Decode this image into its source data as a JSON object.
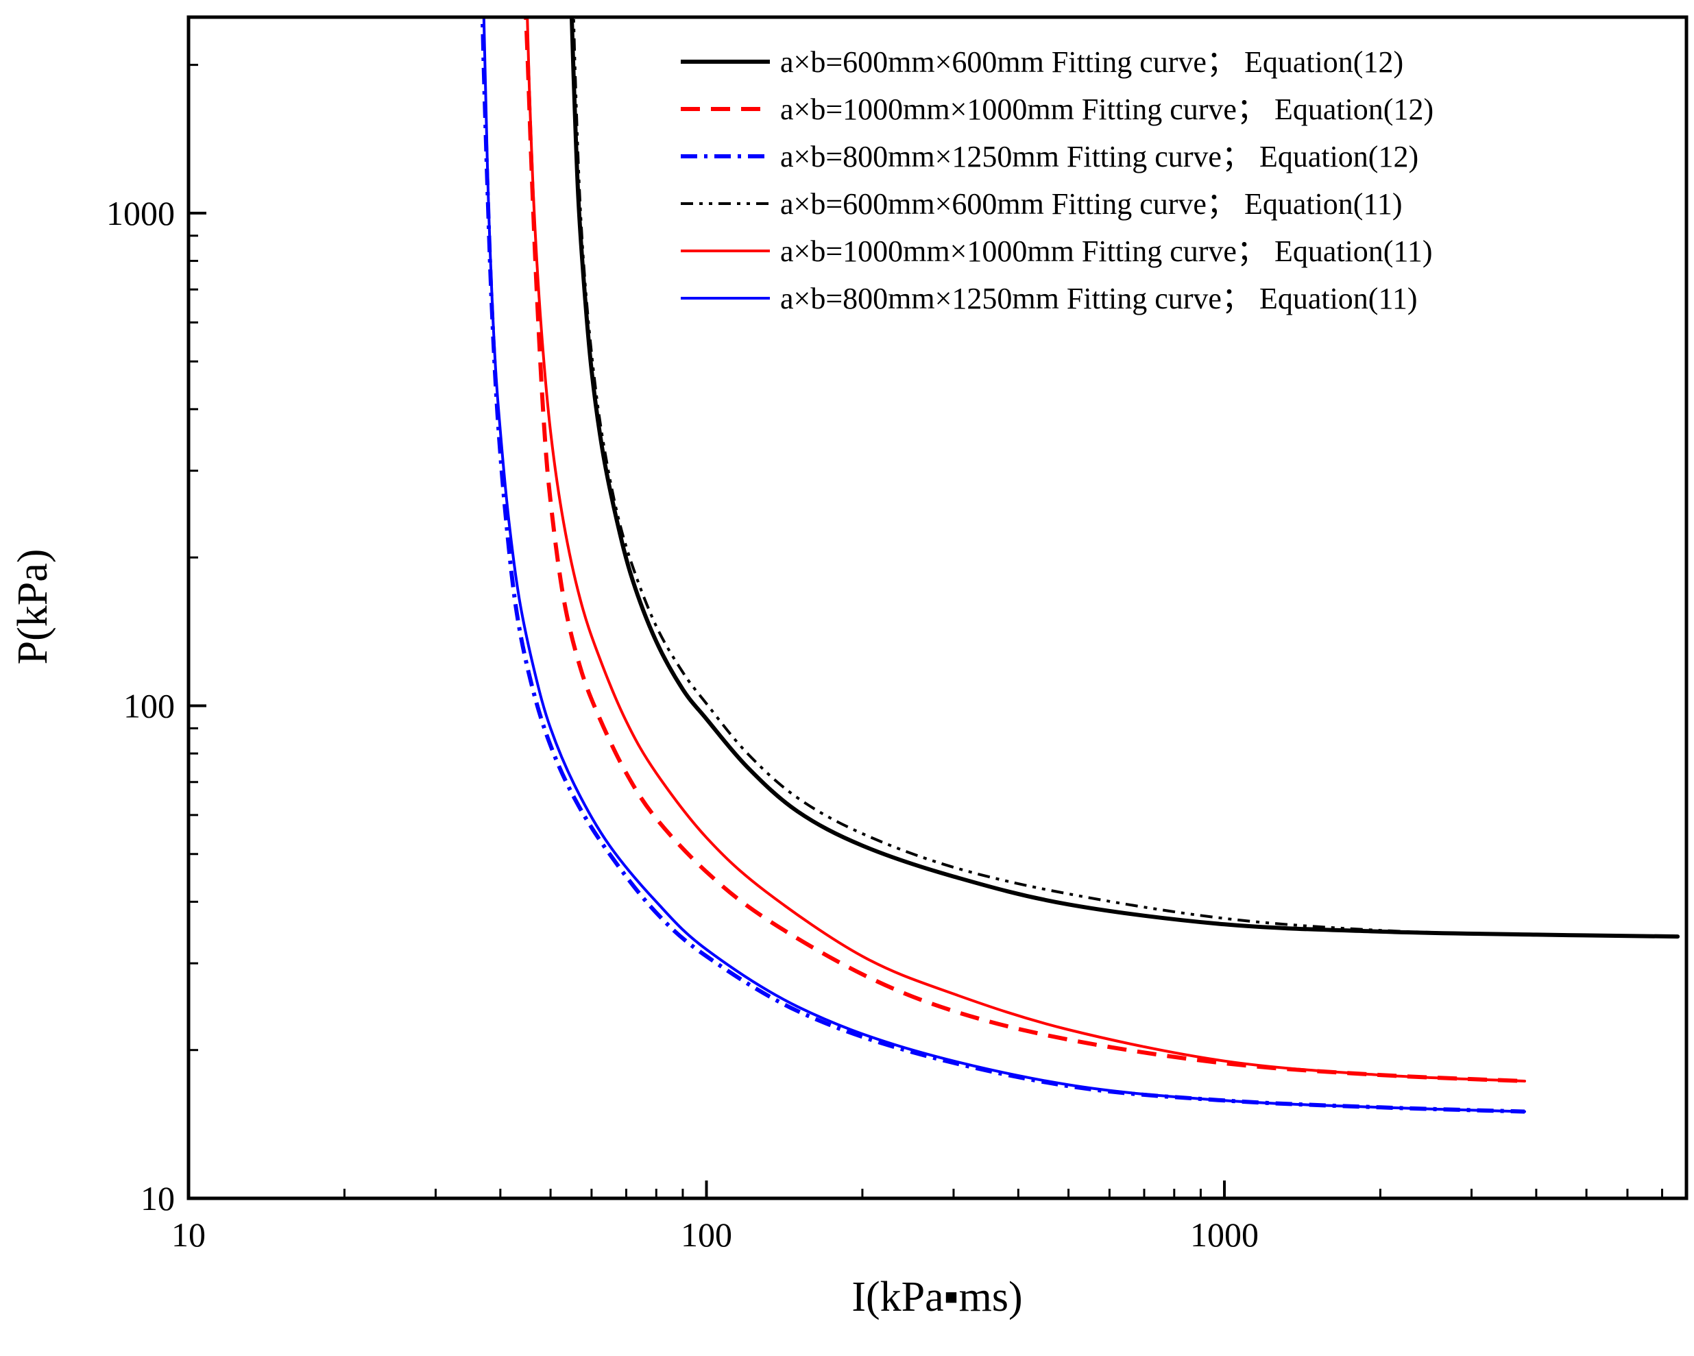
{
  "chart_data": {
    "type": "line",
    "title": "",
    "xlabel": "I(kPa▪ms)",
    "ylabel": "P(kPa)",
    "xscale": "log",
    "yscale": "log",
    "xlim": [
      10,
      7800
    ],
    "ylim": [
      10,
      2500
    ],
    "x_ticks": [
      {
        "value": 10,
        "label": "10"
      },
      {
        "value": 100,
        "label": "100"
      },
      {
        "value": 1000,
        "label": "1000"
      }
    ],
    "y_ticks": [
      {
        "value": 10,
        "label": "10"
      },
      {
        "value": 100,
        "label": "100"
      },
      {
        "value": 1000,
        "label": "1000"
      }
    ],
    "legend_position": "top-right",
    "series": [
      {
        "name": "a×b=600mm×600mm Fitting curve； Equation(12)",
        "color": "#000000",
        "style": "solid",
        "width": 6,
        "x": [
          54.8,
          55.4,
          56.5,
          58.0,
          60.0,
          63.0,
          67.0,
          72.0,
          80.0,
          90.0,
          100.0,
          120.0,
          150.0,
          200.0,
          300.0,
          500.0,
          1000.0,
          2000.0,
          4000.0,
          7500.0
        ],
        "y": [
          2700,
          1900,
          1100,
          720,
          480,
          330,
          240,
          180,
          135,
          108,
          94,
          75,
          61,
          52,
          45,
          39.5,
          36,
          34.8,
          34.3,
          34.0
        ]
      },
      {
        "name": "a×b=1000mm×1000mm Fitting curve； Equation(12)",
        "color": "#ff0000",
        "style": "dashed",
        "width": 6,
        "x": [
          44.7,
          45.2,
          46.0,
          47.0,
          48.5,
          50.0,
          53.0,
          57.0,
          62.0,
          70.0,
          80.0,
          100.0,
          130.0,
          200.0,
          300.0,
          500.0,
          1000.0,
          2000.0,
          3800.0
        ],
        "y": [
          2700,
          2000,
          1200,
          700,
          380,
          260,
          165,
          120,
          95,
          73,
          59,
          46,
          37,
          28.5,
          24,
          21,
          18.8,
          17.8,
          17.3
        ]
      },
      {
        "name": "a×b=800mm×1250mm Fitting curve； Equation(12)",
        "color": "#0000ff",
        "style": "dashdot",
        "width": 6,
        "x": [
          36.9,
          37.2,
          37.8,
          38.5,
          39.5,
          41.0,
          43.0,
          46.0,
          50.0,
          56.0,
          65.0,
          80.0,
          100.0,
          150.0,
          250.0,
          500.0,
          1000.0,
          2000.0,
          3800.0
        ],
        "y": [
          2700,
          1900,
          1100,
          650,
          390,
          240,
          155,
          110,
          83,
          64,
          50,
          38,
          31,
          24,
          19.8,
          16.9,
          15.8,
          15.3,
          15.0
        ]
      },
      {
        "name": "a×b=600mm×600mm Fitting curve； Equation(11)",
        "color": "#000000",
        "style": "dashdotdot",
        "width": 4,
        "x": [
          55.3,
          55.9,
          57.0,
          58.5,
          60.5,
          63.0,
          67.0,
          72.0,
          80.0,
          90.0,
          100.0,
          120.0,
          150.0,
          200.0,
          300.0,
          500.0,
          1000.0,
          2000.0,
          4000.0,
          7500.0
        ],
        "y": [
          2700,
          1800,
          1050,
          690,
          480,
          350,
          250,
          192,
          145,
          117,
          101,
          80,
          65,
          55,
          47,
          41.5,
          37,
          35,
          34.3,
          34.0
        ]
      },
      {
        "name": "a×b=1000mm×1000mm Fitting curve； Equation(11)",
        "color": "#ff0000",
        "style": "solid",
        "width": 4,
        "x": [
          45.0,
          45.5,
          46.5,
          48.0,
          50.0,
          53.0,
          57.0,
          62.0,
          70.0,
          80.0,
          100.0,
          130.0,
          200.0,
          300.0,
          500.0,
          1000.0,
          2000.0,
          3800.0
        ],
        "y": [
          2700,
          1800,
          1000,
          580,
          360,
          235,
          165,
          126,
          93,
          73,
          54,
          42,
          31,
          26,
          22,
          19,
          17.8,
          17.3
        ]
      },
      {
        "name": "a×b=800mm×1250mm Fitting curve； Equation(11)",
        "color": "#0000ff",
        "style": "solid",
        "width": 4,
        "x": [
          37.1,
          37.4,
          38.0,
          39.0,
          40.0,
          41.5,
          43.5,
          46.5,
          50.0,
          56.0,
          65.0,
          80.0,
          100.0,
          150.0,
          250.0,
          500.0,
          1000.0,
          2000.0,
          3800.0
        ],
        "y": [
          2700,
          1900,
          1000,
          520,
          360,
          240,
          165,
          118,
          90,
          68,
          52,
          40,
          32,
          24.5,
          20,
          17,
          15.8,
          15.3,
          15.0
        ]
      }
    ]
  }
}
